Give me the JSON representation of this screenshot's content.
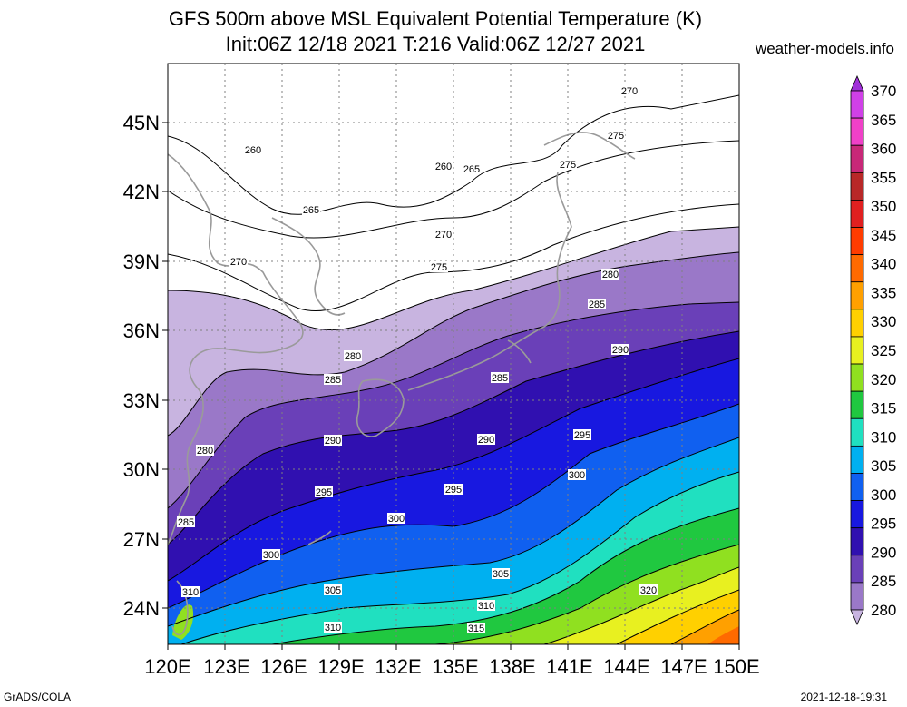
{
  "title_line1": "GFS 500m above MSL Equivalent Potential Temperature (K)",
  "title_line2": "Init:06Z 12/18 2021 T:216 Valid:06Z 12/27 2021",
  "site": "weather-models.info",
  "footer_left": "GrADS/COLA",
  "footer_right": "2021-12-18-19:31",
  "lat_labels": [
    "45N",
    "42N",
    "39N",
    "36N",
    "33N",
    "30N",
    "27N",
    "24N"
  ],
  "lon_labels": [
    "120E",
    "123E",
    "126E",
    "129E",
    "132E",
    "135E",
    "138E",
    "141E",
    "144E",
    "147E",
    "150E"
  ],
  "colorbar": {
    "labels": [
      "370",
      "365",
      "360",
      "355",
      "350",
      "345",
      "340",
      "335",
      "330",
      "325",
      "320",
      "315",
      "310",
      "305",
      "300",
      "295",
      "290",
      "285",
      "280"
    ],
    "colors": [
      "#a030d8",
      "#d040e8",
      "#f040c8",
      "#c82878",
      "#b82828",
      "#e02020",
      "#ff3c00",
      "#ff6a00",
      "#ffa000",
      "#ffd000",
      "#e8f020",
      "#90e020",
      "#20c840",
      "#20e0c0",
      "#00b0f0",
      "#1060f0",
      "#1818e0",
      "#3010b0",
      "#6a40b8",
      "#9a78c8",
      "#c8b4e0"
    ]
  },
  "contour_labels": [
    {
      "text": "270"
    },
    {
      "text": "275"
    },
    {
      "text": "275"
    },
    {
      "text": "260"
    },
    {
      "text": "260"
    },
    {
      "text": "265"
    },
    {
      "text": "265"
    },
    {
      "text": "270"
    },
    {
      "text": "275"
    },
    {
      "text": "270"
    },
    {
      "text": "280"
    },
    {
      "text": "285"
    },
    {
      "text": "290"
    },
    {
      "text": "280"
    },
    {
      "text": "285"
    },
    {
      "text": "285"
    },
    {
      "text": "290"
    },
    {
      "text": "290"
    },
    {
      "text": "295"
    },
    {
      "text": "280"
    },
    {
      "text": "300"
    },
    {
      "text": "295"
    },
    {
      "text": "295"
    },
    {
      "text": "300"
    },
    {
      "text": "285"
    },
    {
      "text": "300"
    },
    {
      "text": "305"
    },
    {
      "text": "305"
    },
    {
      "text": "310"
    },
    {
      "text": "320"
    },
    {
      "text": "310"
    },
    {
      "text": "310"
    },
    {
      "text": "315"
    }
  ]
}
